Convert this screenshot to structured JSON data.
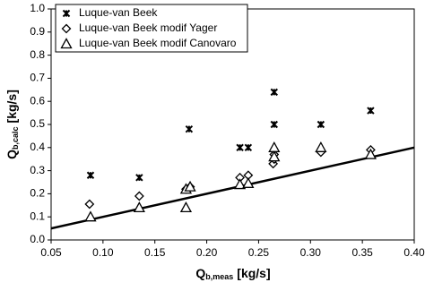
{
  "chart_data": {
    "type": "scatter",
    "x_label": {
      "main": "Q",
      "sub": "b,meas",
      "unit": "[kg/s]"
    },
    "y_label": {
      "main": "Q",
      "sub": "b,calc",
      "unit": "[kg/s]"
    },
    "xlim": [
      0.05,
      0.4
    ],
    "xticks": [
      {
        "value": 0.05,
        "label": "0.05"
      },
      {
        "value": 0.1,
        "label": "0.10"
      },
      {
        "value": 0.15,
        "label": "0.15"
      },
      {
        "value": 0.2,
        "label": "0.20"
      },
      {
        "value": 0.25,
        "label": "0.25"
      },
      {
        "value": 0.3,
        "label": "0.30"
      },
      {
        "value": 0.35,
        "label": "0.35"
      },
      {
        "value": 0.4,
        "label": "0.40"
      }
    ],
    "ylim": [
      0,
      1.0
    ],
    "yticks": [
      {
        "value": 0,
        "label": "0.0"
      },
      0.1,
      0.2,
      0.3,
      0.4,
      0.5,
      0.6,
      0.7,
      0.8,
      0.9,
      {
        "value": 1.0,
        "label": "1.0"
      }
    ],
    "grid": false,
    "legend": "top-left",
    "series": [
      {
        "name": "Luque-van Beek",
        "color": "#000000",
        "marker": "x",
        "x": [
          0.088,
          0.135,
          0.183,
          0.232,
          0.24,
          0.265,
          0.265,
          0.31,
          0.358
        ],
        "values": [
          0.28,
          0.27,
          0.48,
          0.4,
          0.4,
          0.64,
          0.5,
          0.5,
          0.56
        ]
      },
      {
        "name": "Luque-van Beek modif Yager",
        "color": "#000000",
        "marker": "diamond",
        "x": [
          0.087,
          0.135,
          0.18,
          0.184,
          0.232,
          0.24,
          0.264,
          0.265,
          0.265,
          0.31,
          0.358
        ],
        "values": [
          0.155,
          0.19,
          0.22,
          0.23,
          0.27,
          0.28,
          0.33,
          0.35,
          0.37,
          0.38,
          0.39
        ]
      },
      {
        "name": "Luque-van Beek modif Canovaro",
        "color": "#000000",
        "marker": "triangle",
        "x": [
          0.088,
          0.135,
          0.18,
          0.18,
          0.184,
          0.232,
          0.24,
          0.265,
          0.265,
          0.31,
          0.358
        ],
        "values": [
          0.1,
          0.14,
          0.14,
          0.22,
          0.23,
          0.24,
          0.245,
          0.4,
          0.36,
          0.4,
          0.37
        ]
      }
    ],
    "reference_line": {
      "color": "#000000",
      "x": [
        0.05,
        0.4
      ],
      "values": [
        0.05,
        0.4
      ]
    }
  }
}
